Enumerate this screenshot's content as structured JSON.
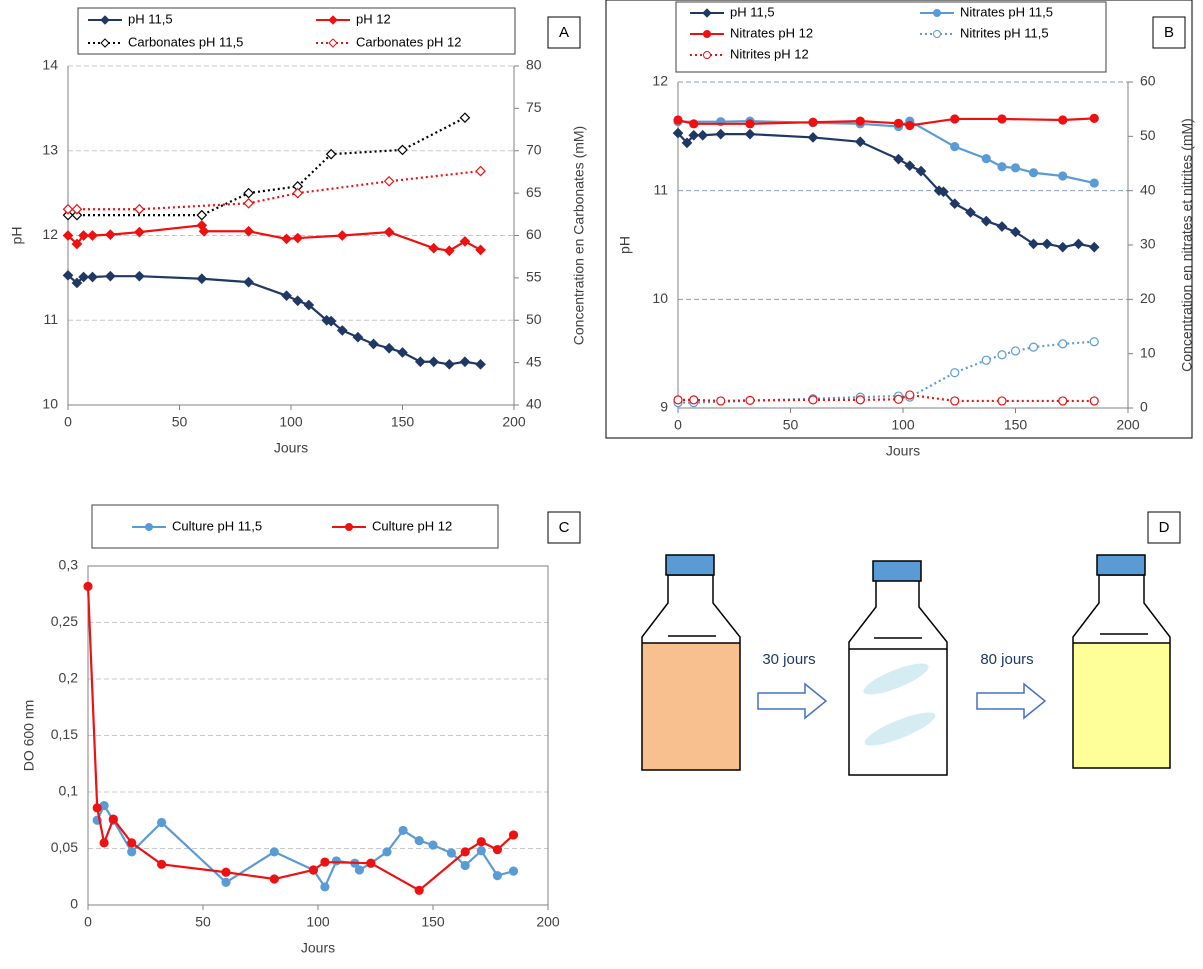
{
  "chart_data": [
    {
      "type": "line",
      "label": "A",
      "x_label": "Jours",
      "y_label": "pH",
      "y2_label": "Concentration en Carbonates (mM)",
      "xlim": [
        0,
        200
      ],
      "xticks": [
        0,
        50,
        100,
        150,
        200
      ],
      "ylim": [
        10,
        14
      ],
      "yticks": [
        10,
        11,
        12,
        13,
        14
      ],
      "y2lim": [
        40,
        80
      ],
      "y2ticks": [
        40,
        45,
        50,
        55,
        60,
        65,
        70,
        75,
        80
      ],
      "grid": true,
      "series": [
        {
          "name": "pH 11,5",
          "color": "#1f3864",
          "marker": "diamond",
          "dash": false,
          "x": [
            0,
            4,
            7,
            11,
            19,
            32,
            60,
            81,
            98,
            103,
            108,
            116,
            118,
            123,
            130,
            137,
            144,
            150,
            158,
            164,
            171,
            178,
            185
          ],
          "values": [
            11.53,
            11.44,
            11.51,
            11.51,
            11.52,
            11.52,
            11.49,
            11.45,
            11.29,
            11.23,
            11.18,
            11.0,
            10.99,
            10.88,
            10.8,
            10.72,
            10.67,
            10.62,
            10.51,
            10.51,
            10.48,
            10.51,
            10.48
          ]
        },
        {
          "name": "pH 12",
          "color": "#ee1111",
          "marker": "diamond",
          "dash": false,
          "x": [
            0,
            4,
            7,
            11,
            19,
            32,
            60,
            61,
            81,
            98,
            103,
            123,
            144,
            164,
            171,
            178,
            185
          ],
          "values": [
            12.0,
            11.9,
            12.0,
            12.0,
            12.01,
            12.04,
            12.12,
            12.05,
            12.05,
            11.96,
            11.97,
            12.0,
            12.04,
            11.85,
            11.82,
            11.93,
            11.83
          ]
        },
        {
          "name": "Carbonates pH 11,5",
          "color": "#000000",
          "marker": "open-diamond",
          "dash": true,
          "axis": "y2",
          "x": [
            0,
            4,
            60,
            81,
            103,
            118,
            150,
            178
          ],
          "values": [
            62.4,
            62.4,
            62.4,
            65.0,
            65.8,
            69.6,
            70.1,
            73.9
          ]
        },
        {
          "name": "Carbonates pH 12",
          "color": "#ee1111",
          "marker": "open-diamond",
          "dash": true,
          "axis": "y2",
          "x": [
            0,
            4,
            32,
            81,
            103,
            144,
            185
          ],
          "values": [
            63.1,
            63.1,
            63.1,
            63.8,
            65.0,
            66.4,
            67.6
          ]
        }
      ]
    },
    {
      "type": "line",
      "label": "B",
      "x_label": "Jours",
      "y_label": "pH",
      "y2_label": "Concentration  en nitrates et nitrites (mM)",
      "xlim": [
        0,
        200
      ],
      "xticks": [
        0,
        50,
        100,
        150,
        200
      ],
      "ylim": [
        9,
        12
      ],
      "yticks": [
        9,
        10,
        11,
        12
      ],
      "y2lim": [
        0,
        60
      ],
      "y2ticks": [
        0,
        10,
        20,
        30,
        40,
        50,
        60
      ],
      "grid": true,
      "series": [
        {
          "name": "pH 11,5",
          "color": "#1f3864",
          "marker": "diamond",
          "dash": false,
          "x": [
            0,
            4,
            7,
            11,
            19,
            32,
            60,
            81,
            98,
            103,
            108,
            116,
            118,
            123,
            130,
            137,
            144,
            150,
            158,
            164,
            171,
            178,
            185
          ],
          "values": [
            11.53,
            11.44,
            11.51,
            11.51,
            11.52,
            11.52,
            11.49,
            11.45,
            11.29,
            11.23,
            11.18,
            11.0,
            10.99,
            10.88,
            10.8,
            10.72,
            10.67,
            10.62,
            10.51,
            10.51,
            10.48,
            10.51,
            10.48
          ]
        },
        {
          "name": "Nitrates pH 11,5",
          "color": "#5b9bd5",
          "marker": "circle",
          "dash": false,
          "axis": "y2",
          "x": [
            0,
            19,
            32,
            60,
            81,
            98,
            103,
            123,
            137,
            144,
            150,
            158,
            171,
            185
          ],
          "values": [
            52.7,
            52.7,
            52.8,
            52.5,
            52.3,
            51.8,
            52.8,
            48.1,
            45.9,
            44.4,
            44.2,
            43.3,
            42.7,
            41.4
          ]
        },
        {
          "name": "Nitrates pH 12",
          "color": "#ee1111",
          "marker": "circle",
          "dash": false,
          "axis": "y2",
          "x": [
            0,
            7,
            32,
            60,
            81,
            98,
            103,
            123,
            144,
            171,
            185
          ],
          "values": [
            53.0,
            52.3,
            52.3,
            52.6,
            52.8,
            52.4,
            52.0,
            53.2,
            53.2,
            53.0,
            53.3
          ]
        },
        {
          "name": "Nitrites pH 11,5",
          "color": "#5b9bd5",
          "marker": "open-circle",
          "dash": true,
          "axis": "y2",
          "x": [
            0,
            7,
            60,
            81,
            98,
            103,
            123,
            137,
            144,
            150,
            158,
            171,
            185
          ],
          "values": [
            1.0,
            1.0,
            1.7,
            2.0,
            2.2,
            2.0,
            6.5,
            8.8,
            9.8,
            10.5,
            11.2,
            11.8,
            12.2
          ]
        },
        {
          "name": "Nitrites pH 12",
          "color": "#ee1111",
          "marker": "open-circle",
          "dash": true,
          "axis": "y2",
          "x": [
            0,
            7,
            19,
            32,
            60,
            81,
            98,
            103,
            123,
            144,
            171,
            185
          ],
          "values": [
            1.5,
            1.5,
            1.3,
            1.4,
            1.5,
            1.5,
            1.6,
            2.4,
            1.3,
            1.3,
            1.3,
            1.3
          ]
        }
      ]
    },
    {
      "type": "line",
      "label": "C",
      "x_label": "Jours",
      "y_label": "DO 600 nm",
      "xlim": [
        0,
        200
      ],
      "xticks": [
        0,
        50,
        100,
        150,
        200
      ],
      "ylim": [
        0,
        0.3
      ],
      "yticks": [
        0,
        {
          "value": 0.05,
          "label": "0,05"
        },
        {
          "value": 0.1,
          "label": "0,1"
        },
        {
          "value": 0.15,
          "label": "0,15"
        },
        {
          "value": 0.2,
          "label": "0,2"
        },
        {
          "value": 0.25,
          "label": "0,25"
        },
        {
          "value": 0.3,
          "label": "0,3"
        }
      ],
      "grid": true,
      "series": [
        {
          "name": "Culture pH 11,5",
          "color": "#5b9bd5",
          "marker": "circle",
          "dash": false,
          "x": [
            4,
            7,
            11,
            19,
            32,
            60,
            81,
            98,
            103,
            108,
            116,
            118,
            123,
            130,
            137,
            144,
            150,
            158,
            164,
            171,
            178,
            185
          ],
          "values": [
            0.075,
            0.088,
            0.075,
            0.047,
            0.073,
            0.02,
            0.047,
            0.031,
            0.016,
            0.039,
            0.037,
            0.031,
            0.037,
            0.047,
            0.066,
            0.057,
            0.053,
            0.046,
            0.035,
            0.048,
            0.026,
            0.03
          ]
        },
        {
          "name": "Culture pH 12",
          "color": "#ee1111",
          "marker": "circle",
          "dash": false,
          "x": [
            0,
            4,
            7,
            11,
            19,
            32,
            60,
            81,
            98,
            103,
            123,
            144,
            164,
            171,
            178,
            185
          ],
          "values": [
            0.282,
            0.086,
            0.055,
            0.076,
            0.055,
            0.036,
            0.029,
            0.023,
            0.031,
            0.038,
            0.037,
            0.013,
            0.047,
            0.056,
            0.049,
            0.062
          ]
        }
      ]
    }
  ],
  "diagram": {
    "label": "D",
    "steps": [
      "30 jours",
      "80 jours"
    ]
  }
}
